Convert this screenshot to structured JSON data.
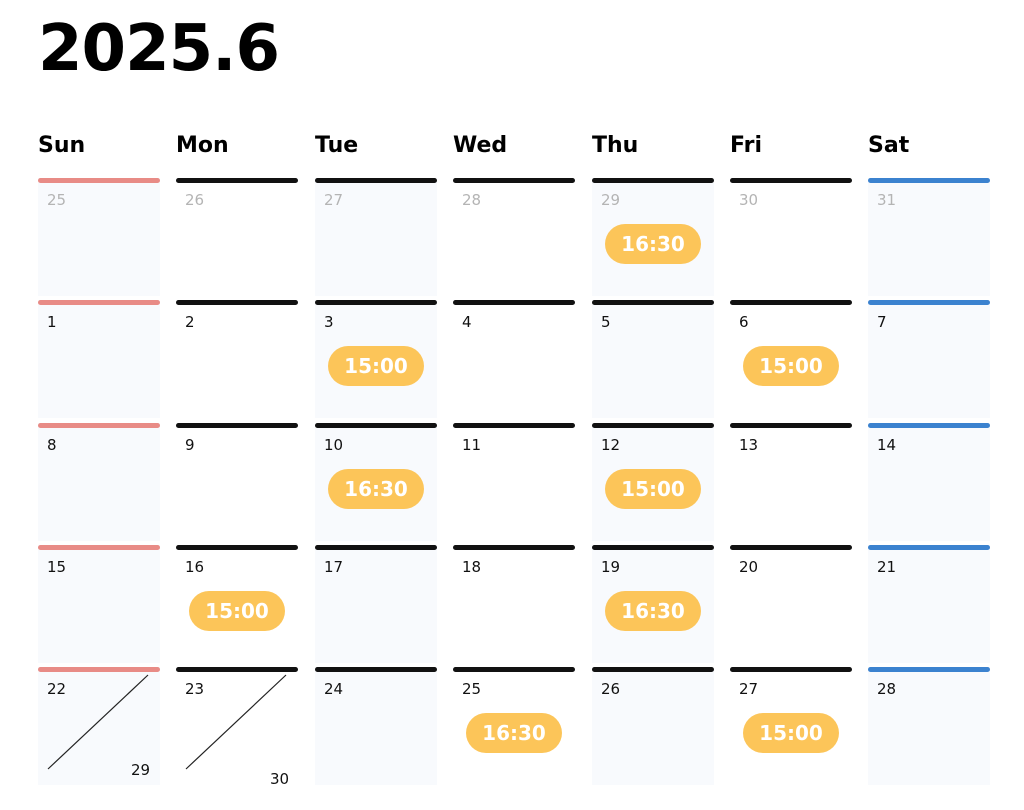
{
  "title": "2025.6",
  "weekdays": [
    "Sun",
    "Mon",
    "Tue",
    "Wed",
    "Thu",
    "Fri",
    "Sat"
  ],
  "weeks": [
    [
      {
        "day": "25",
        "muted": true
      },
      {
        "day": "26",
        "muted": true
      },
      {
        "day": "27",
        "muted": true
      },
      {
        "day": "28",
        "muted": true
      },
      {
        "day": "29",
        "muted": true,
        "event": "16:30"
      },
      {
        "day": "30",
        "muted": true
      },
      {
        "day": "31",
        "muted": true
      }
    ],
    [
      {
        "day": "1"
      },
      {
        "day": "2"
      },
      {
        "day": "3",
        "event": "15:00"
      },
      {
        "day": "4"
      },
      {
        "day": "5"
      },
      {
        "day": "6",
        "event": "15:00"
      },
      {
        "day": "7"
      }
    ],
    [
      {
        "day": "8"
      },
      {
        "day": "9"
      },
      {
        "day": "10",
        "event": "16:30"
      },
      {
        "day": "11"
      },
      {
        "day": "12",
        "event": "15:00"
      },
      {
        "day": "13"
      },
      {
        "day": "14"
      }
    ],
    [
      {
        "day": "15"
      },
      {
        "day": "16",
        "event": "15:00"
      },
      {
        "day": "17"
      },
      {
        "day": "18"
      },
      {
        "day": "19",
        "event": "16:30"
      },
      {
        "day": "20"
      },
      {
        "day": "21"
      }
    ],
    [
      {
        "day": "22",
        "split": "29"
      },
      {
        "day": "23",
        "split": "30"
      },
      {
        "day": "24"
      },
      {
        "day": "25",
        "event": "16:30"
      },
      {
        "day": "26"
      },
      {
        "day": "27",
        "event": "15:00"
      },
      {
        "day": "28"
      }
    ]
  ],
  "colors": {
    "sunday_bar": "#e88b86",
    "saturday_bar": "#3b82cf",
    "weekday_bar": "#111111",
    "event_pill": "#fcc559",
    "shaded_cell": "#f8fafd"
  }
}
